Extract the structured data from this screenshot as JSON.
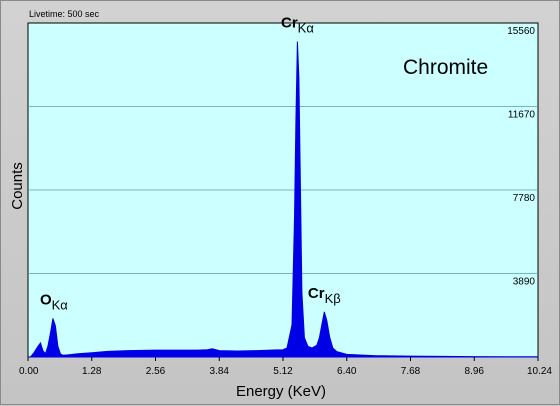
{
  "chart_data": {
    "type": "area",
    "livetime": "Livetime: 500 sec",
    "title": "Chromite",
    "xlabel": "Energy (KeV)",
    "ylabel": "Counts",
    "xlim": [
      0,
      10.24
    ],
    "ylim": [
      0,
      15560
    ],
    "x_ticks": [
      "0.00",
      "1.28",
      "2.56",
      "3.84",
      "5.12",
      "6.40",
      "7.68",
      "8.96",
      "10.24"
    ],
    "y_ticks": [
      "3890",
      "7780",
      "11670",
      "15560"
    ],
    "grid": true,
    "series": [
      {
        "color": "#0000e6",
        "x": [
          0.05,
          0.12,
          0.2,
          0.25,
          0.3,
          0.35,
          0.4,
          0.45,
          0.5,
          0.55,
          0.6,
          0.65,
          0.7,
          0.8,
          1.0,
          1.28,
          1.6,
          2.0,
          2.56,
          3.0,
          3.4,
          3.6,
          3.7,
          3.8,
          3.84,
          4.2,
          4.6,
          5.0,
          5.12,
          5.2,
          5.3,
          5.35,
          5.38,
          5.41,
          5.44,
          5.47,
          5.5,
          5.55,
          5.62,
          5.7,
          5.8,
          5.85,
          5.9,
          5.95,
          6.0,
          6.06,
          6.12,
          6.2,
          6.4,
          7.0,
          7.68,
          8.96,
          10.24
        ],
        "y": [
          0,
          200,
          500,
          650,
          300,
          150,
          500,
          1100,
          1800,
          1450,
          500,
          150,
          80,
          100,
          150,
          200,
          260,
          300,
          320,
          320,
          320,
          340,
          380,
          320,
          300,
          280,
          300,
          330,
          340,
          420,
          1500,
          6500,
          11000,
          14700,
          13000,
          8000,
          3000,
          900,
          500,
          420,
          550,
          900,
          1500,
          2100,
          1700,
          900,
          420,
          250,
          120,
          60,
          40,
          20,
          10
        ]
      }
    ],
    "annotations": [
      {
        "element": "Cr",
        "line": "Kα",
        "x": 5.41
      },
      {
        "element": "Cr",
        "line": "Kβ",
        "x": 5.95
      },
      {
        "element": "O",
        "line": "Kα",
        "x": 0.52
      }
    ]
  }
}
